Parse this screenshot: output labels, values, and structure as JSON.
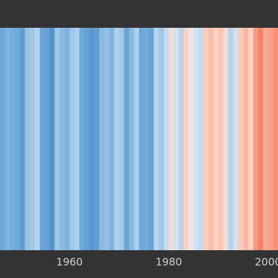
{
  "chart_data": {
    "type": "heatmap",
    "title": "",
    "xlabel": "",
    "ylabel": "",
    "x_range": [
      1946,
      2002
    ],
    "x_ticks": [
      "1960",
      "1980",
      "2000"
    ],
    "grid": false,
    "legend": "none",
    "value_kind": "temperature anomaly (relative scale, -1 = deepest blue, +1 = deepest red)",
    "palette": {
      "cold_deep": "#3f84c2",
      "cold_mid": "#74addb",
      "cold_light": "#c3dbef",
      "near_zero": "#e9eef5",
      "warm_light": "#fbd3c2",
      "warm_mid": "#f7a38c",
      "warm_deep": "#f2613f"
    },
    "years": [
      1946,
      1947,
      1948,
      1949,
      1950,
      1951,
      1952,
      1953,
      1954,
      1955,
      1956,
      1957,
      1958,
      1959,
      1960,
      1961,
      1962,
      1963,
      1964,
      1965,
      1966,
      1967,
      1968,
      1969,
      1970,
      1971,
      1972,
      1973,
      1974,
      1975,
      1976,
      1977,
      1978,
      1979,
      1980,
      1981,
      1982,
      1983,
      1984,
      1985,
      1986,
      1987,
      1988,
      1989,
      1990,
      1991,
      1992,
      1993,
      1994,
      1995,
      1996,
      1997,
      1998,
      1999,
      2000,
      2001,
      2002
    ],
    "values": [
      -0.55,
      -0.45,
      -0.5,
      -0.55,
      -0.7,
      -0.35,
      -0.3,
      -0.2,
      -0.6,
      -0.65,
      -0.8,
      -0.3,
      -0.4,
      -0.45,
      -0.3,
      -0.25,
      -0.55,
      -0.65,
      -0.75,
      -0.7,
      -0.4,
      -0.35,
      -0.45,
      -0.25,
      -0.3,
      -0.6,
      -0.4,
      -0.25,
      -0.55,
      -0.5,
      -0.6,
      -0.2,
      -0.3,
      -0.15,
      0.1,
      -0.1,
      -0.2,
      0.15,
      0.05,
      -0.1,
      -0.15,
      0.2,
      0.3,
      0.15,
      0.25,
      0.1,
      -0.2,
      -0.1,
      0.2,
      0.35,
      0.15,
      0.55,
      0.75,
      0.45,
      0.5,
      0.65,
      0.85
    ]
  }
}
